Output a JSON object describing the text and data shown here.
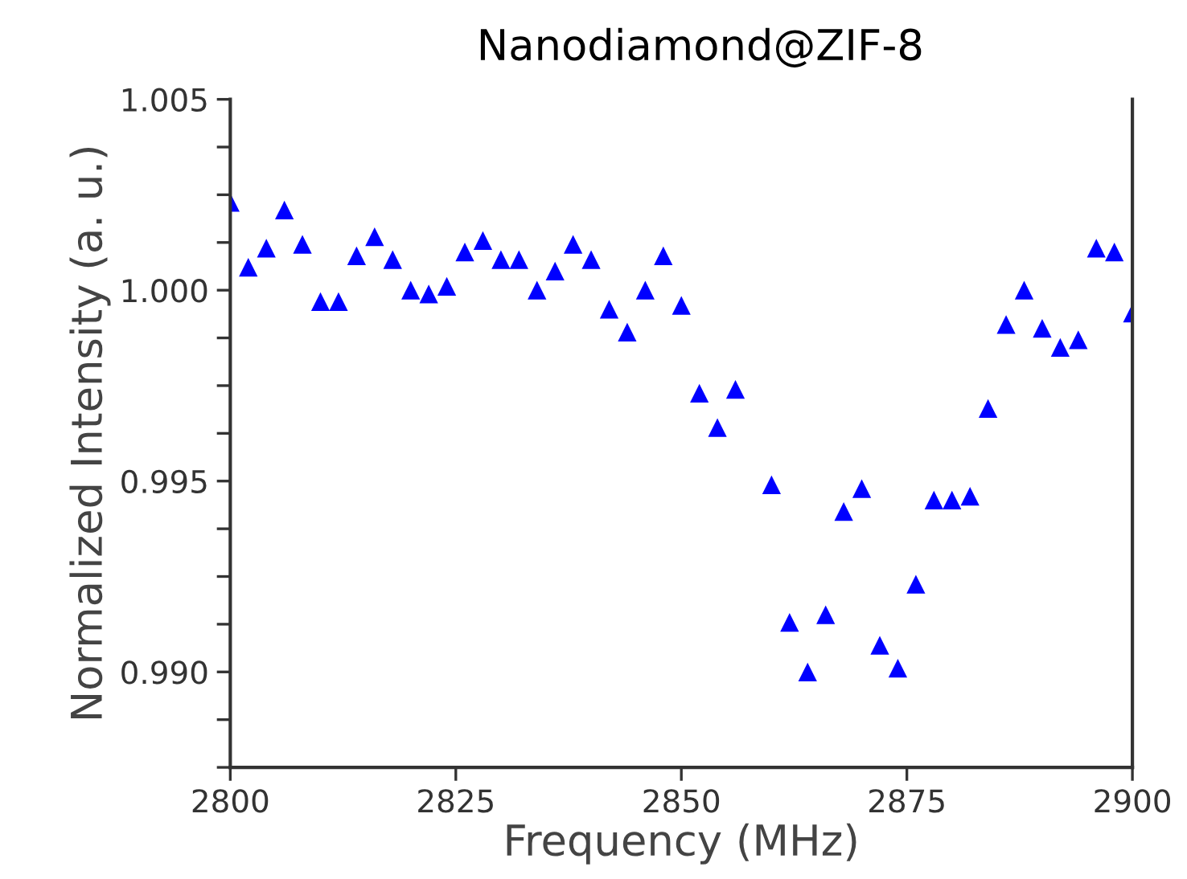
{
  "chart_data": {
    "type": "scatter",
    "title": "Nanodiamond@ZIF-8",
    "xlabel": "Frequency (MHz)",
    "ylabel": "Normalized Intensity (a. u.)",
    "x": [
      2800,
      2802,
      2804,
      2806,
      2808,
      2810,
      2812,
      2814,
      2816,
      2818,
      2820,
      2822,
      2824,
      2826,
      2828,
      2830,
      2832,
      2834,
      2836,
      2838,
      2840,
      2842,
      2844,
      2846,
      2848,
      2850,
      2852,
      2854,
      2856,
      2860,
      2862,
      2864,
      2866,
      2868,
      2870,
      2872,
      2874,
      2876,
      2878,
      2880,
      2882,
      2884,
      2886,
      2888,
      2890,
      2892,
      2894,
      2896,
      2898,
      2900
    ],
    "series": [
      {
        "color": "#0000ff",
        "values": [
          1.0023,
          1.0006,
          1.0011,
          1.0021,
          1.0012,
          0.9997,
          0.9997,
          1.0009,
          1.0014,
          1.0008,
          1.0,
          0.9999,
          1.0001,
          1.001,
          1.0013,
          1.0008,
          1.0008,
          1.0,
          1.0005,
          1.0012,
          1.0008,
          0.9995,
          0.9989,
          1.0,
          1.0009,
          0.9996,
          0.9973,
          0.9964,
          0.9974,
          0.9949,
          0.9913,
          0.99,
          0.9915,
          0.9942,
          0.9948,
          0.9907,
          0.9901,
          0.9923,
          0.9945,
          0.9945,
          0.9946,
          0.9969,
          0.9991,
          1.0,
          0.999,
          0.9985,
          0.9987,
          1.0011,
          1.001,
          0.9994
        ]
      }
    ],
    "marker": "triangle",
    "xlim": [
      2800,
      2900
    ],
    "xticks": [
      2800,
      2825,
      2850,
      2875,
      2900
    ],
    "ylim": [
      0.9875,
      1.005
    ],
    "yticks": [
      {
        "value": 0.9875,
        "label": null
      },
      {
        "value": 0.98875,
        "label": null
      },
      {
        "value": 0.99,
        "label": "0.990"
      },
      {
        "value": 0.99125,
        "label": null
      },
      {
        "value": 0.9925,
        "label": null
      },
      {
        "value": 0.99375,
        "label": null
      },
      {
        "value": 0.995,
        "label": "0.995"
      },
      {
        "value": 0.99625,
        "label": null
      },
      {
        "value": 0.9975,
        "label": null
      },
      {
        "value": 0.99875,
        "label": null
      },
      {
        "value": 1.0,
        "label": "1.000"
      },
      {
        "value": 1.00125,
        "label": null
      },
      {
        "value": 1.0025,
        "label": null
      },
      {
        "value": 1.00375,
        "label": null
      },
      {
        "value": 1.005,
        "label": "1.005"
      }
    ],
    "grid": false,
    "legend": false
  }
}
